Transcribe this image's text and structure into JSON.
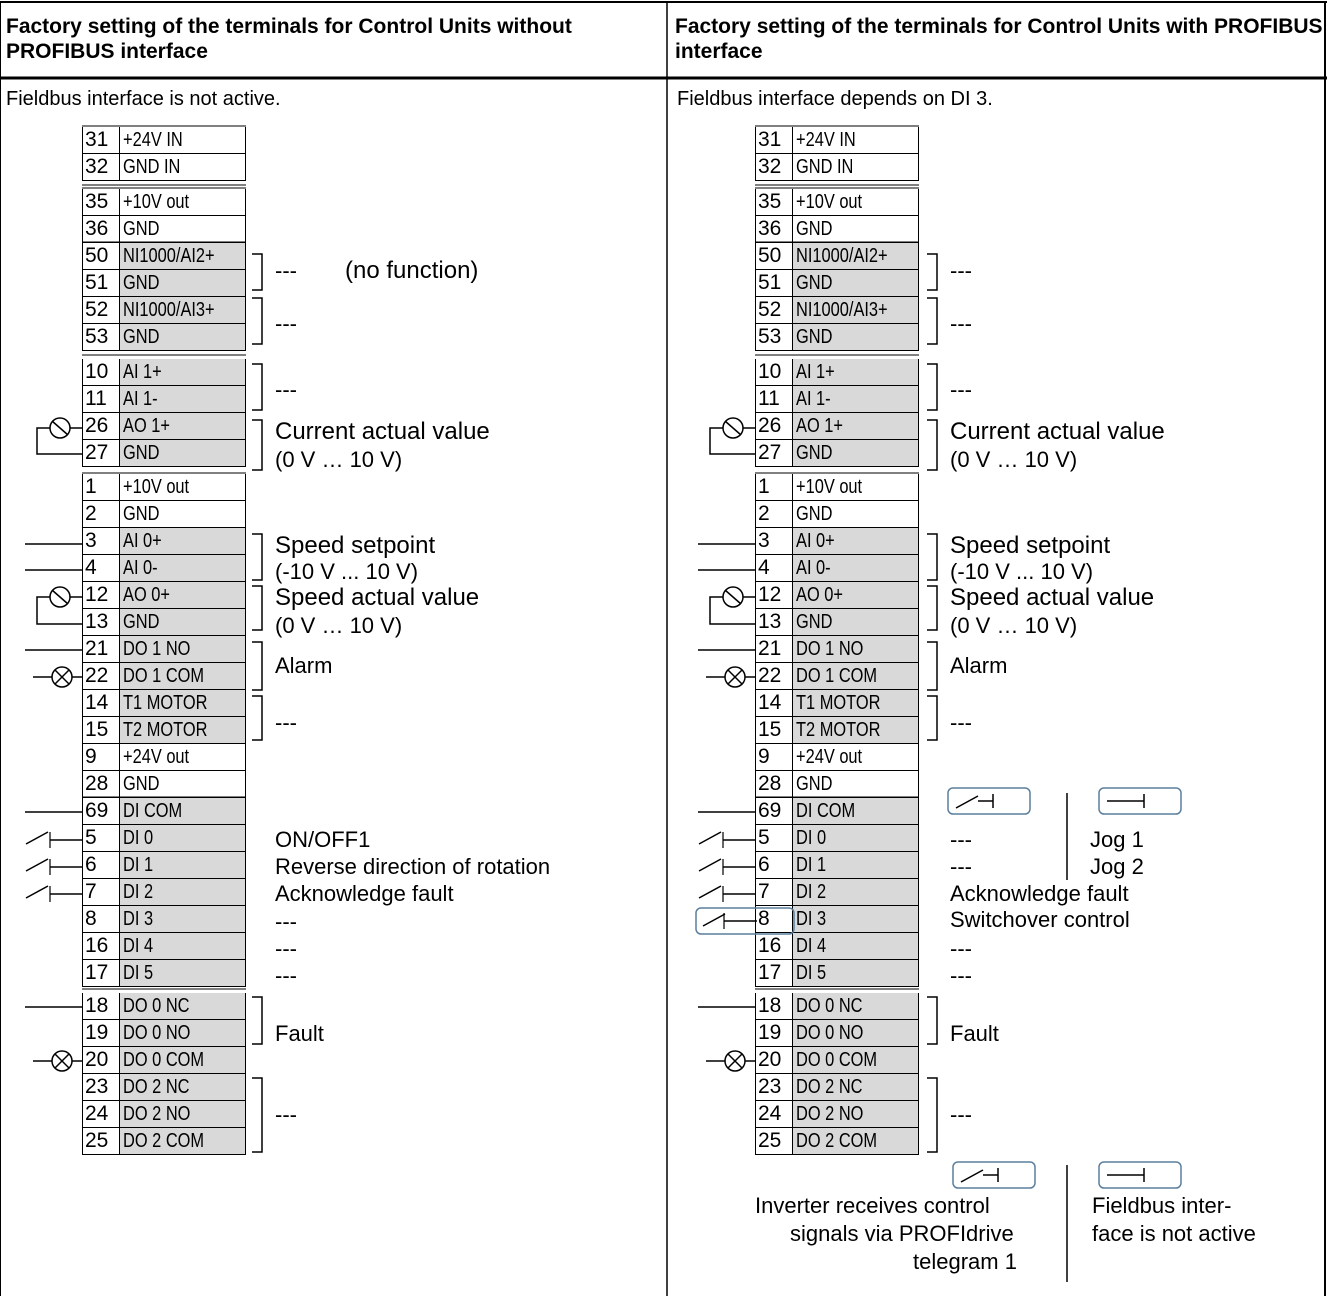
{
  "headers": {
    "left": "Factory setting of the terminals for Control Units without PROFIBUS interface",
    "right": "Factory setting of the terminals for Control Units with PROFIBUS interface"
  },
  "subtitles": {
    "left": "Fieldbus interface is not active.",
    "right": "Fieldbus interface depends on DI 3."
  },
  "terminals": [
    {
      "num": "31",
      "label": "+24V IN",
      "shade": false
    },
    {
      "num": "32",
      "label": "GND IN",
      "shade": false
    },
    {
      "num": "35",
      "label": "+10V out",
      "shade": false
    },
    {
      "num": "36",
      "label": "GND",
      "shade": false
    },
    {
      "num": "50",
      "label": "NI1000/AI2+",
      "shade": true
    },
    {
      "num": "51",
      "label": "GND",
      "shade": true
    },
    {
      "num": "52",
      "label": "NI1000/AI3+",
      "shade": true
    },
    {
      "num": "53",
      "label": "GND",
      "shade": true
    },
    {
      "num": "10",
      "label": "AI 1+",
      "shade": true
    },
    {
      "num": "11",
      "label": "AI 1-",
      "shade": true
    },
    {
      "num": "26",
      "label": "AO 1+",
      "shade": true
    },
    {
      "num": "27",
      "label": "GND",
      "shade": true
    },
    {
      "num": "1",
      "label": "+10V out",
      "shade": false
    },
    {
      "num": "2",
      "label": "GND",
      "shade": false
    },
    {
      "num": "3",
      "label": "AI 0+",
      "shade": true
    },
    {
      "num": "4",
      "label": "AI 0-",
      "shade": true
    },
    {
      "num": "12",
      "label": "AO 0+",
      "shade": true
    },
    {
      "num": "13",
      "label": "GND",
      "shade": true
    },
    {
      "num": "21",
      "label": "DO 1 NO",
      "shade": true
    },
    {
      "num": "22",
      "label": "DO 1 COM",
      "shade": true
    },
    {
      "num": "14",
      "label": "T1 MOTOR",
      "shade": true
    },
    {
      "num": "15",
      "label": "T2 MOTOR",
      "shade": true
    },
    {
      "num": "9",
      "label": "+24V out",
      "shade": false
    },
    {
      "num": "28",
      "label": "GND",
      "shade": false
    },
    {
      "num": "69",
      "label": "DI COM",
      "shade": true
    },
    {
      "num": "5",
      "label": "DI 0",
      "shade": true
    },
    {
      "num": "6",
      "label": "DI 1",
      "shade": true
    },
    {
      "num": "7",
      "label": "DI 2",
      "shade": true
    },
    {
      "num": "8",
      "label": "DI 3",
      "shade": true
    },
    {
      "num": "16",
      "label": "DI 4",
      "shade": true
    },
    {
      "num": "17",
      "label": "DI 5",
      "shade": true
    },
    {
      "num": "18",
      "label": "DO 0 NC",
      "shade": true
    },
    {
      "num": "19",
      "label": "DO 0 NO",
      "shade": true
    },
    {
      "num": "20",
      "label": "DO 0 COM",
      "shade": true
    },
    {
      "num": "23",
      "label": "DO 2 NC",
      "shade": true
    },
    {
      "num": "24",
      "label": "DO 2 NO",
      "shade": true
    },
    {
      "num": "25",
      "label": "DO 2 COM",
      "shade": true
    }
  ],
  "left_functions": {
    "ai2": "---",
    "no_function": "(no function)",
    "ai3": "---",
    "ai1": "---",
    "ao1_a": "Current actual value",
    "ao1_b": "(0 V … 10 V)",
    "ai0_a": "Speed setpoint",
    "ai0_b": "(-10 V ... 10 V)",
    "ao0_a": "Speed actual value",
    "ao0_b": "(0 V … 10 V)",
    "do1": "Alarm",
    "motor": "---",
    "di0": "ON/OFF1",
    "di1": "Reverse direction of rotation",
    "di2": "Acknowledge fault",
    "di3": "---",
    "di4": "---",
    "di5": "---",
    "do0": "Fault",
    "do2": "---"
  },
  "right_functions": {
    "ai2": "---",
    "ai3": "---",
    "ai1": "---",
    "ao1_a": "Current actual value",
    "ao1_b": "(0 V … 10 V)",
    "ai0_a": "Speed setpoint",
    "ai0_b": "(-10 V ... 10 V)",
    "ao0_a": "Speed actual value",
    "ao0_b": "(0 V … 10 V)",
    "do1": "Alarm",
    "motor": "---",
    "switch_open_label": "8",
    "switch_closed_label": "8",
    "di0": "---",
    "di0_b": "Jog 1",
    "di1": "---",
    "di1_b": "Jog 2",
    "di2": "Acknowledge fault",
    "di3": "Switchover control",
    "di4": "---",
    "di5": "---",
    "do0": "Fault",
    "do2": "---",
    "bottom_switch_open_label": "8",
    "bottom_switch_closed_label": "8",
    "bottom_left_1": "Inverter receives control",
    "bottom_left_2": "signals via PROFIdrive",
    "bottom_left_3": "telegram 1",
    "bottom_right_1": "Fieldbus inter-",
    "bottom_right_2": "face is not active"
  },
  "colors": {
    "shade": "#d9d9d9",
    "switch_box": "#5b7f9e"
  }
}
